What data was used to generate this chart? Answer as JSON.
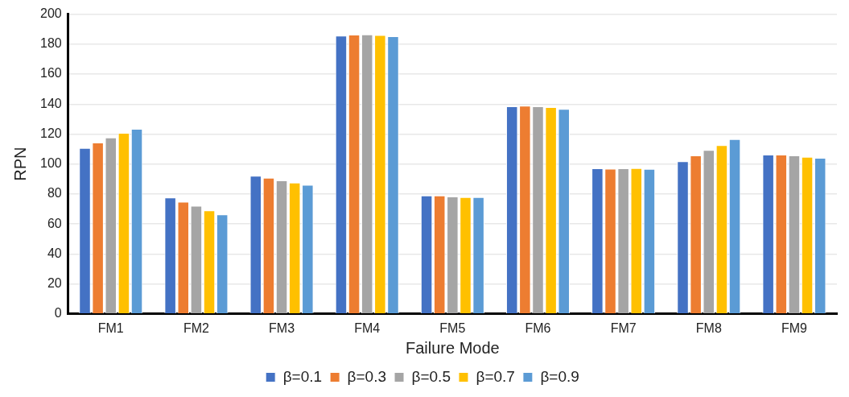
{
  "chart_data": {
    "type": "bar",
    "xlabel": "Failure Mode",
    "ylabel": "RPN",
    "categories": [
      "FM1",
      "FM2",
      "FM3",
      "FM4",
      "FM5",
      "FM6",
      "FM7",
      "FM8",
      "FM9"
    ],
    "series": [
      {
        "name": "β=0.1",
        "color": "#4472c4",
        "values": [
          110.7,
          77.7,
          92.2,
          185.7,
          79.0,
          138.5,
          97.1,
          101.9,
          106.3
        ]
      },
      {
        "name": "β=0.3",
        "color": "#ed7d31",
        "values": [
          114.3,
          74.8,
          90.8,
          186.3,
          79.0,
          138.9,
          96.9,
          105.7,
          106.3
        ]
      },
      {
        "name": "β=0.5",
        "color": "#a5a5a5",
        "values": [
          117.7,
          72.1,
          89.1,
          186.5,
          78.4,
          138.5,
          97.1,
          109.4,
          105.7
        ]
      },
      {
        "name": "β=0.7",
        "color": "#ffc000",
        "values": [
          120.8,
          69.1,
          87.6,
          186.1,
          77.9,
          138.0,
          97.3,
          112.6,
          104.8
        ]
      },
      {
        "name": "β=0.9",
        "color": "#5b9bd5",
        "values": [
          123.5,
          66.4,
          86.1,
          185.3,
          77.9,
          136.8,
          96.8,
          116.6,
          104.2
        ]
      }
    ],
    "ylim": [
      0,
      200
    ],
    "yticks": [
      0,
      20,
      40,
      60,
      80,
      100,
      120,
      140,
      160,
      180,
      200
    ],
    "grid": "y",
    "legend": "bottom"
  }
}
